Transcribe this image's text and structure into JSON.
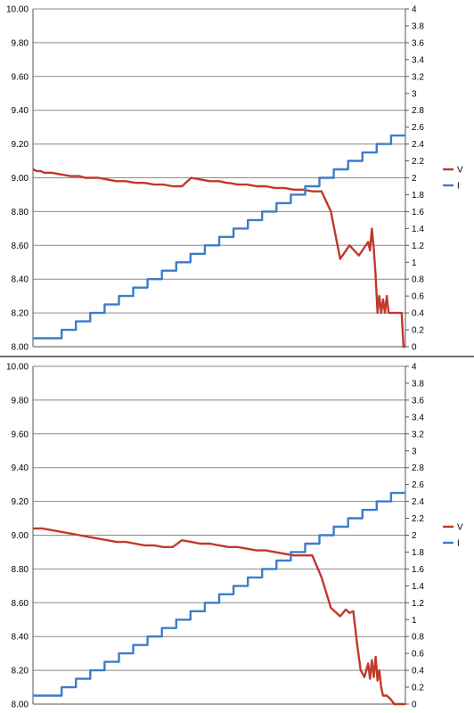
{
  "chart_data": [
    {
      "type": "line",
      "title": "",
      "xlabel": "",
      "y_left": {
        "ylim": [
          8.0,
          10.0
        ],
        "ticks": [
          "8.00",
          "8.20",
          "8.40",
          "8.60",
          "8.80",
          "9.00",
          "9.20",
          "9.40",
          "9.60",
          "9.80",
          "10.00"
        ]
      },
      "y_right": {
        "ylim": [
          0,
          4
        ],
        "ticks": [
          "0",
          "0.2",
          "0.4",
          "0.6",
          "0.8",
          "1",
          "1.2",
          "1.4",
          "1.6",
          "1.8",
          "2",
          "2.2",
          "2.4",
          "2.6",
          "2.8",
          "3",
          "3.2",
          "3.4",
          "3.6",
          "3.8",
          "4"
        ]
      },
      "grid": true,
      "legend_position": "right",
      "series": [
        {
          "name": "V",
          "axis": "left",
          "color": "#C0392B",
          "x": [
            0,
            2,
            4,
            6,
            10,
            15,
            20,
            25,
            28,
            35,
            40,
            45,
            50,
            55,
            60,
            65,
            70,
            75,
            80,
            85,
            90,
            95,
            100,
            104,
            105,
            110,
            115,
            120,
            125,
            130,
            135,
            140,
            145,
            150,
            155,
            160,
            165,
            170,
            175,
            180,
            181,
            182,
            183,
            184,
            185,
            186,
            187,
            188,
            189,
            190,
            191,
            192,
            193,
            194,
            195,
            196,
            197,
            198,
            199,
            200
          ],
          "y": [
            9.05,
            9.04,
            9.04,
            9.03,
            9.03,
            9.02,
            9.01,
            9.01,
            9.0,
            9.0,
            8.99,
            8.98,
            8.98,
            8.97,
            8.97,
            8.96,
            8.96,
            8.95,
            8.95,
            9.0,
            8.99,
            8.98,
            8.98,
            8.97,
            8.97,
            8.96,
            8.96,
            8.95,
            8.95,
            8.94,
            8.94,
            8.93,
            8.93,
            8.92,
            8.92,
            8.8,
            8.52,
            8.6,
            8.54,
            8.62,
            8.57,
            8.7,
            8.58,
            8.42,
            8.2,
            8.3,
            8.2,
            8.28,
            8.2,
            8.3,
            8.2,
            8.2,
            8.2,
            8.2,
            8.2,
            8.2,
            8.2,
            8.2,
            8.0,
            8.0
          ]
        },
        {
          "name": "I",
          "axis": "right",
          "color": "#3D7CC9",
          "steps": [
            0.1,
            0.1,
            0.2,
            0.3,
            0.4,
            0.5,
            0.6,
            0.7,
            0.8,
            0.9,
            1.0,
            1.1,
            1.2,
            1.3,
            1.4,
            1.5,
            1.6,
            1.7,
            1.8,
            1.9,
            2.0,
            2.1,
            2.2,
            2.3,
            2.4,
            2.5
          ]
        }
      ]
    },
    {
      "type": "line",
      "title": "",
      "xlabel": "",
      "y_left": {
        "ylim": [
          8.0,
          10.0
        ],
        "ticks": [
          "8.00",
          "8.20",
          "8.40",
          "8.60",
          "8.80",
          "9.00",
          "9.20",
          "9.40",
          "9.60",
          "9.80",
          "10.00"
        ]
      },
      "y_right": {
        "ylim": [
          0,
          4
        ],
        "ticks": [
          "0",
          "0.2",
          "0.4",
          "0.6",
          "0.8",
          "1",
          "1.2",
          "1.4",
          "1.6",
          "1.8",
          "2",
          "2.2",
          "2.4",
          "2.6",
          "2.8",
          "3",
          "3.2",
          "3.4",
          "3.6",
          "3.8",
          "4"
        ]
      },
      "grid": true,
      "legend_position": "right",
      "series": [
        {
          "name": "V",
          "axis": "left",
          "color": "#C0392B",
          "x": [
            0,
            5,
            10,
            15,
            20,
            25,
            30,
            35,
            40,
            45,
            50,
            55,
            60,
            65,
            70,
            75,
            80,
            85,
            90,
            95,
            100,
            105,
            110,
            115,
            120,
            125,
            130,
            135,
            140,
            145,
            150,
            155,
            160,
            165,
            168,
            170,
            172,
            174,
            176,
            178,
            180,
            181,
            182,
            183,
            184,
            185,
            186,
            187,
            188,
            190,
            192,
            194,
            196,
            198,
            199,
            200
          ],
          "y": [
            9.04,
            9.04,
            9.03,
            9.02,
            9.01,
            9.0,
            8.99,
            8.98,
            8.97,
            8.96,
            8.96,
            8.95,
            8.94,
            8.94,
            8.93,
            8.93,
            8.97,
            8.96,
            8.95,
            8.95,
            8.94,
            8.93,
            8.93,
            8.92,
            8.91,
            8.91,
            8.9,
            8.89,
            8.88,
            8.88,
            8.88,
            8.75,
            8.57,
            8.52,
            8.56,
            8.54,
            8.55,
            8.36,
            8.2,
            8.16,
            8.24,
            8.15,
            8.26,
            8.16,
            8.28,
            8.14,
            8.2,
            8.1,
            8.05,
            8.05,
            8.03,
            8.0,
            8.0,
            8.0,
            8.0,
            8.0
          ]
        },
        {
          "name": "I",
          "axis": "right",
          "color": "#3D7CC9",
          "steps": [
            0.1,
            0.1,
            0.2,
            0.3,
            0.4,
            0.5,
            0.6,
            0.7,
            0.8,
            0.9,
            1.0,
            1.1,
            1.2,
            1.3,
            1.4,
            1.5,
            1.6,
            1.7,
            1.8,
            1.9,
            2.0,
            2.1,
            2.2,
            2.3,
            2.4,
            2.5
          ]
        }
      ]
    }
  ]
}
